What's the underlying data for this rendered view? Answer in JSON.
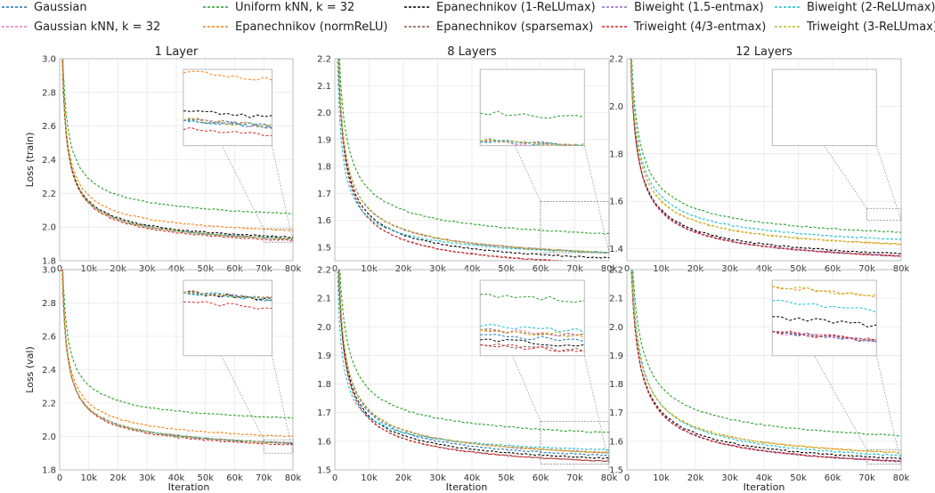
{
  "chart_data": {
    "type": "line",
    "xlabel": "Iteration",
    "series": [
      {
        "name": "Gaussian",
        "color": "#1f77b4"
      },
      {
        "name": "Gaussian kNN, k = 32",
        "color": "#e377c2"
      },
      {
        "name": "Uniform kNN, k = 32",
        "color": "#2ca02c"
      },
      {
        "name": "Epanechnikov (normReLU)",
        "color": "#ff7f0e"
      },
      {
        "name": "Epanechnikov (1-ReLUmax)",
        "color": "#000000"
      },
      {
        "name": "Epanechnikov (sparsemax)",
        "color": "#8c564b"
      },
      {
        "name": "Biweight (1.5-entmax)",
        "color": "#9467bd"
      },
      {
        "name": "Triweight (4/3-entmax)",
        "color": "#d62728"
      },
      {
        "name": "Biweight (2-ReLUmax)",
        "color": "#17becf"
      },
      {
        "name": "Triweight (3-ReLUmax)",
        "color": "#bcbd22"
      }
    ],
    "x_ticks": [
      "0",
      "10k",
      "20k",
      "30k",
      "40k",
      "50k",
      "60k",
      "70k",
      "80k"
    ],
    "xlim": [
      0,
      80000
    ],
    "panels": [
      {
        "row": 0,
        "col": 0,
        "title": "1 Layer",
        "ylabel": "Loss (train)",
        "ylim": [
          1.8,
          3.0
        ],
        "y_ticks": [
          "1.8",
          "2.0",
          "2.2",
          "2.4",
          "2.6",
          "2.8",
          "3.0"
        ],
        "zoom_x": [
          70000,
          80000
        ],
        "zoom_y": [
          1.91,
          1.99
        ],
        "final": [
          1.93,
          1.93,
          2.08,
          1.98,
          1.94,
          1.93,
          1.93,
          1.92,
          1.93,
          1.93
        ],
        "at2k": [
          2.6,
          2.6,
          2.72,
          2.62,
          2.6,
          2.6,
          2.6,
          2.6,
          2.6,
          2.6
        ]
      },
      {
        "row": 0,
        "col": 1,
        "title": "8 Layers",
        "ylabel": "",
        "ylim": [
          1.45,
          2.2
        ],
        "y_ticks": [
          "1.5",
          "1.6",
          "1.7",
          "1.8",
          "1.9",
          "2.0",
          "2.1",
          "2.2"
        ],
        "zoom_x": [
          60000,
          80000
        ],
        "zoom_y": [
          1.48,
          1.67
        ],
        "final": [
          1.48,
          1.48,
          1.55,
          1.48,
          1.46,
          1.44,
          1.48,
          1.44,
          1.48,
          1.48
        ],
        "at2k": [
          1.98,
          1.98,
          2.06,
          1.98,
          1.96,
          1.95,
          1.98,
          1.95,
          1.88,
          1.98
        ]
      },
      {
        "row": 0,
        "col": 2,
        "title": "12 Layers",
        "ylabel": "",
        "ylim": [
          1.35,
          2.2
        ],
        "y_ticks": [
          "1.4",
          "1.6",
          "1.8",
          "2.0",
          "2.2"
        ],
        "zoom_x": [
          70000,
          80000
        ],
        "zoom_y": [
          1.52,
          1.57
        ],
        "final": [
          1.37,
          1.37,
          1.47,
          1.42,
          1.38,
          1.37,
          1.37,
          1.37,
          1.44,
          1.42
        ],
        "at2k": [
          1.95,
          1.95,
          2.05,
          1.98,
          1.95,
          1.95,
          1.95,
          1.95,
          2.0,
          1.98
        ]
      },
      {
        "row": 1,
        "col": 0,
        "title": "",
        "ylabel": "Loss (val)",
        "ylim": [
          1.8,
          3.0
        ],
        "y_ticks": [
          "1.8",
          "2.0",
          "2.2",
          "2.4",
          "2.6",
          "2.8",
          "3.0"
        ],
        "zoom_x": [
          70000,
          80000
        ],
        "zoom_y": [
          1.9,
          1.98
        ],
        "final": [
          1.96,
          1.96,
          2.11,
          2.0,
          1.96,
          1.96,
          1.96,
          1.95,
          1.96,
          1.96
        ],
        "at2k": [
          2.6,
          2.6,
          2.72,
          2.62,
          2.6,
          2.6,
          2.6,
          2.6,
          2.6,
          2.6
        ]
      },
      {
        "row": 1,
        "col": 1,
        "title": "",
        "ylabel": "",
        "ylim": [
          1.5,
          2.2
        ],
        "y_ticks": [
          "1.5",
          "1.6",
          "1.7",
          "1.8",
          "1.9",
          "2.0",
          "2.1",
          "2.2"
        ],
        "zoom_x": [
          60000,
          80000
        ],
        "zoom_y": [
          1.52,
          1.67
        ],
        "final": [
          1.55,
          1.56,
          1.63,
          1.56,
          1.54,
          1.53,
          1.56,
          1.53,
          1.57,
          1.56
        ],
        "at2k": [
          2.02,
          2.02,
          2.1,
          2.02,
          2.0,
          1.99,
          2.02,
          1.99,
          1.92,
          2.02
        ]
      },
      {
        "row": 1,
        "col": 2,
        "title": "",
        "ylabel": "",
        "ylim": [
          1.5,
          2.2
        ],
        "y_ticks": [
          "1.5",
          "1.6",
          "1.7",
          "1.8",
          "1.9",
          "2.0",
          "2.1",
          "2.2"
        ],
        "zoom_x": [
          70000,
          80000
        ],
        "zoom_y": [
          1.52,
          1.57
        ],
        "final": [
          1.53,
          1.53,
          1.62,
          1.56,
          1.54,
          1.53,
          1.53,
          1.53,
          1.55,
          1.56
        ],
        "at2k": [
          2.05,
          2.05,
          2.15,
          2.08,
          2.05,
          2.05,
          2.05,
          2.05,
          2.1,
          2.08
        ]
      }
    ]
  }
}
